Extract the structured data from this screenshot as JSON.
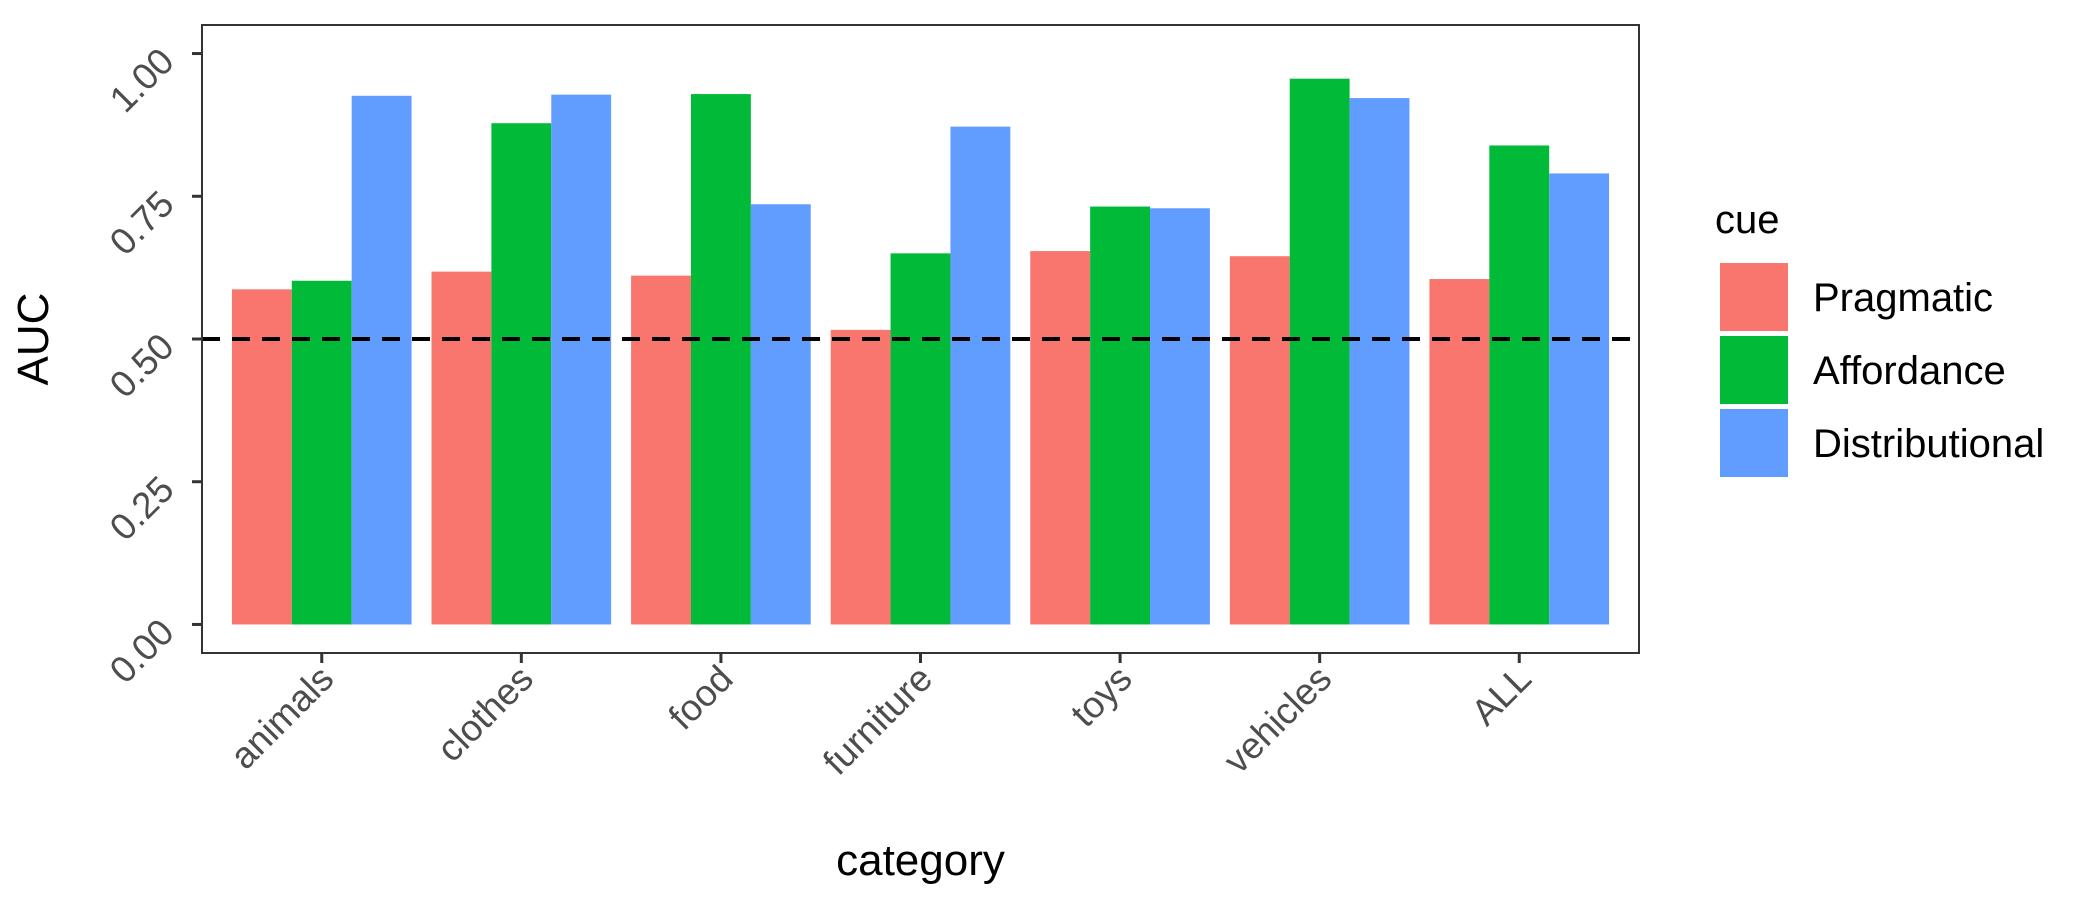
{
  "chart_data": {
    "type": "bar",
    "title": "",
    "xlabel": "category",
    "ylabel": "AUC",
    "categories": [
      "animals",
      "clothes",
      "food",
      "furniture",
      "toys",
      "vehicles",
      "ALL"
    ],
    "series": [
      {
        "name": "Pragmatic",
        "color": "#F8766D",
        "values": [
          0.587,
          0.618,
          0.611,
          0.516,
          0.654,
          0.645,
          0.605
        ]
      },
      {
        "name": "Affordance",
        "color": "#00BA38",
        "values": [
          0.602,
          0.878,
          0.929,
          0.65,
          0.732,
          0.956,
          0.839
        ]
      },
      {
        "name": "Distributional",
        "color": "#619CFF",
        "values": [
          0.926,
          0.928,
          0.736,
          0.872,
          0.729,
          0.922,
          0.79
        ]
      }
    ],
    "ylim": [
      0,
      1.05
    ],
    "yticks": [
      "0.00",
      "0.25",
      "0.50",
      "0.75",
      "1.00"
    ],
    "reference_line": {
      "y": 0.5,
      "style": "dashed",
      "color": "#000000"
    },
    "legend": {
      "title": "cue",
      "position": "right"
    },
    "grid": false
  }
}
